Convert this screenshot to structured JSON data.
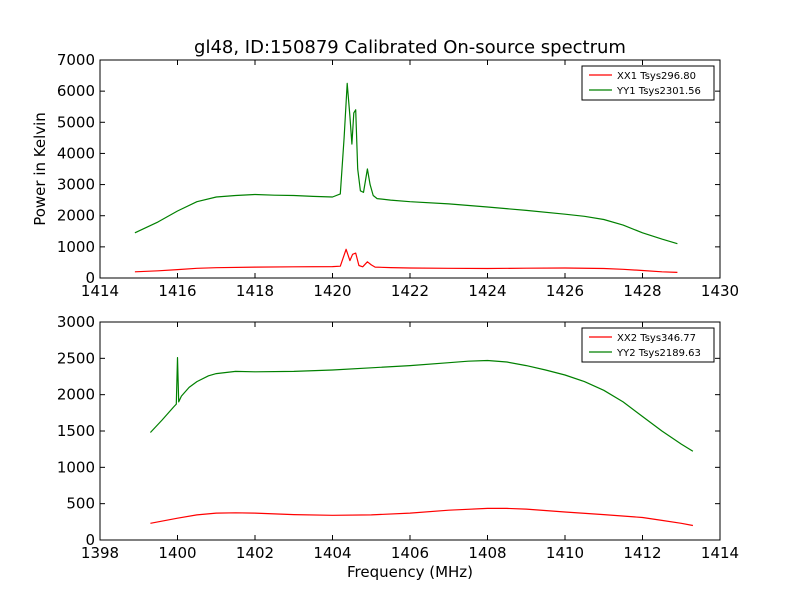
{
  "title": "gl48, ID:150879 Calibrated On-source spectrum",
  "colors": {
    "xx": "#ff0000",
    "yy": "#008000",
    "axis": "#000000",
    "background": "#ffffff"
  },
  "chart_data": [
    {
      "type": "line",
      "title": "gl48, ID:150879 Calibrated On-source spectrum",
      "xlabel": "",
      "ylabel": "Power in Kelvin",
      "xlim": [
        1414,
        1430
      ],
      "ylim": [
        0,
        7000
      ],
      "xticks": [
        1414,
        1416,
        1418,
        1420,
        1422,
        1424,
        1426,
        1428,
        1430
      ],
      "yticks": [
        0,
        1000,
        2000,
        3000,
        4000,
        5000,
        6000,
        7000
      ],
      "xtick_labels": [
        "1414",
        "1416",
        "1418",
        "1420",
        "1422",
        "1424",
        "1426",
        "1428",
        "1430"
      ],
      "ytick_labels": [
        "0",
        "1000",
        "2000",
        "3000",
        "4000",
        "5000",
        "6000",
        "7000"
      ],
      "legend_position": "top-right",
      "grid": false,
      "series": [
        {
          "name": "XX1 Tsys296.80",
          "color": "#ff0000",
          "x": [
            1414.9,
            1415.5,
            1416.0,
            1416.5,
            1417.0,
            1418.0,
            1419.0,
            1420.0,
            1420.2,
            1420.35,
            1420.45,
            1420.52,
            1420.6,
            1420.68,
            1420.78,
            1420.9,
            1421.0,
            1421.1,
            1421.5,
            1422.0,
            1423.0,
            1424.0,
            1425.0,
            1426.0,
            1427.0,
            1427.5,
            1428.0,
            1428.5,
            1428.9
          ],
          "y": [
            200,
            230,
            270,
            310,
            330,
            350,
            360,
            365,
            380,
            920,
            560,
            760,
            800,
            400,
            360,
            520,
            420,
            350,
            335,
            320,
            310,
            305,
            315,
            320,
            305,
            280,
            240,
            200,
            180
          ]
        },
        {
          "name": "YY1 Tsys2301.56",
          "color": "#008000",
          "x": [
            1414.9,
            1415.5,
            1416.0,
            1416.5,
            1417.0,
            1417.5,
            1418.0,
            1418.5,
            1419.0,
            1419.5,
            1420.0,
            1420.2,
            1420.3,
            1420.38,
            1420.45,
            1420.5,
            1420.55,
            1420.6,
            1420.65,
            1420.72,
            1420.8,
            1420.9,
            1420.97,
            1421.05,
            1421.15,
            1421.5,
            1422.0,
            1423.0,
            1424.0,
            1425.0,
            1426.0,
            1426.5,
            1427.0,
            1427.5,
            1428.0,
            1428.5,
            1428.9
          ],
          "y": [
            1450,
            1800,
            2150,
            2450,
            2600,
            2650,
            2680,
            2660,
            2650,
            2620,
            2600,
            2700,
            4500,
            6250,
            5200,
            4300,
            5300,
            5400,
            3500,
            2800,
            2750,
            3500,
            3000,
            2650,
            2550,
            2500,
            2450,
            2380,
            2280,
            2170,
            2050,
            1980,
            1880,
            1700,
            1450,
            1250,
            1100
          ]
        }
      ]
    },
    {
      "type": "line",
      "title": "",
      "xlabel": "Frequency (MHz)",
      "ylabel": "",
      "xlim": [
        1398,
        1414
      ],
      "ylim": [
        0,
        3000
      ],
      "xticks": [
        1398,
        1400,
        1402,
        1404,
        1406,
        1408,
        1410,
        1412,
        1414
      ],
      "yticks": [
        0,
        500,
        1000,
        1500,
        2000,
        2500,
        3000
      ],
      "xtick_labels": [
        "1398",
        "1400",
        "1402",
        "1404",
        "1406",
        "1408",
        "1410",
        "1412",
        "1414"
      ],
      "ytick_labels": [
        "0",
        "500",
        "1000",
        "1500",
        "2000",
        "2500",
        "3000"
      ],
      "legend_position": "top-right",
      "grid": false,
      "series": [
        {
          "name": "XX2 Tsys346.77",
          "color": "#ff0000",
          "x": [
            1399.3,
            1400.0,
            1400.5,
            1401.0,
            1401.5,
            1402.0,
            1403.0,
            1404.0,
            1405.0,
            1406.0,
            1407.0,
            1408.0,
            1408.5,
            1409.0,
            1410.0,
            1411.0,
            1412.0,
            1412.5,
            1413.0,
            1413.3
          ],
          "y": [
            230,
            300,
            345,
            370,
            375,
            370,
            350,
            340,
            345,
            370,
            410,
            435,
            435,
            425,
            385,
            350,
            310,
            270,
            230,
            200
          ]
        },
        {
          "name": "YY2 Tsys2189.63",
          "color": "#008000",
          "x": [
            1399.3,
            1399.6,
            1399.9,
            1399.97,
            1400.0,
            1400.03,
            1400.1,
            1400.3,
            1400.5,
            1400.8,
            1401.0,
            1401.5,
            1402.0,
            1403.0,
            1404.0,
            1405.0,
            1406.0,
            1407.0,
            1407.5,
            1408.0,
            1408.5,
            1409.0,
            1409.5,
            1410.0,
            1410.5,
            1411.0,
            1411.5,
            1412.0,
            1412.5,
            1413.0,
            1413.3
          ],
          "y": [
            1480,
            1650,
            1830,
            1870,
            2510,
            1900,
            1980,
            2100,
            2180,
            2260,
            2290,
            2320,
            2315,
            2320,
            2340,
            2370,
            2400,
            2440,
            2460,
            2470,
            2450,
            2400,
            2340,
            2270,
            2180,
            2060,
            1900,
            1700,
            1500,
            1320,
            1220
          ]
        }
      ]
    }
  ]
}
